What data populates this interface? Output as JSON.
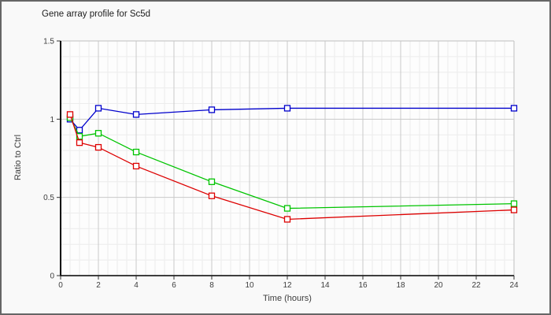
{
  "window": {
    "background": "#f9f9f9",
    "border_color": "#666666"
  },
  "chart_data": {
    "type": "line",
    "title": "Gene array profile for Sc5d",
    "xlabel": "Time (hours)",
    "ylabel": "Ratio to Ctrl",
    "xlim": [
      0,
      24
    ],
    "ylim": [
      0,
      1.5
    ],
    "x_major_ticks": [
      0,
      2,
      4,
      6,
      8,
      10,
      12,
      14,
      16,
      18,
      20,
      22,
      24
    ],
    "x_tick_labels": [
      "0",
      "2",
      "4",
      "6",
      "8",
      "10",
      "12",
      "14",
      "16",
      "18",
      "20",
      "22",
      "24"
    ],
    "y_major_ticks": [
      0,
      0.5,
      1,
      1.5
    ],
    "y_tick_labels": [
      "0",
      "0.5",
      "1",
      "1.5"
    ],
    "x_minor_step": 0.5,
    "y_minor_step": 0.1,
    "grid": true,
    "legend": "none",
    "marker": "open-square",
    "x": [
      0.5,
      1,
      2,
      4,
      8,
      12,
      24
    ],
    "series": [
      {
        "name": "blue",
        "color": "#0000cc",
        "values": [
          1.0,
          0.93,
          1.07,
          1.03,
          1.06,
          1.07,
          1.07
        ]
      },
      {
        "name": "green",
        "color": "#00c400",
        "values": [
          1.01,
          0.89,
          0.91,
          0.79,
          0.6,
          0.43,
          0.46
        ]
      },
      {
        "name": "red",
        "color": "#dd0000",
        "values": [
          1.03,
          0.85,
          0.82,
          0.7,
          0.51,
          0.36,
          0.42
        ]
      }
    ],
    "colors": {
      "plot_background": "#fdfdfd",
      "minor_grid": "#ececec",
      "major_grid": "#c9c9c9",
      "plot_border": "#c0c0c0",
      "axis": "#000000",
      "tick": "#333333",
      "marker_fill": "#ffffff"
    }
  }
}
